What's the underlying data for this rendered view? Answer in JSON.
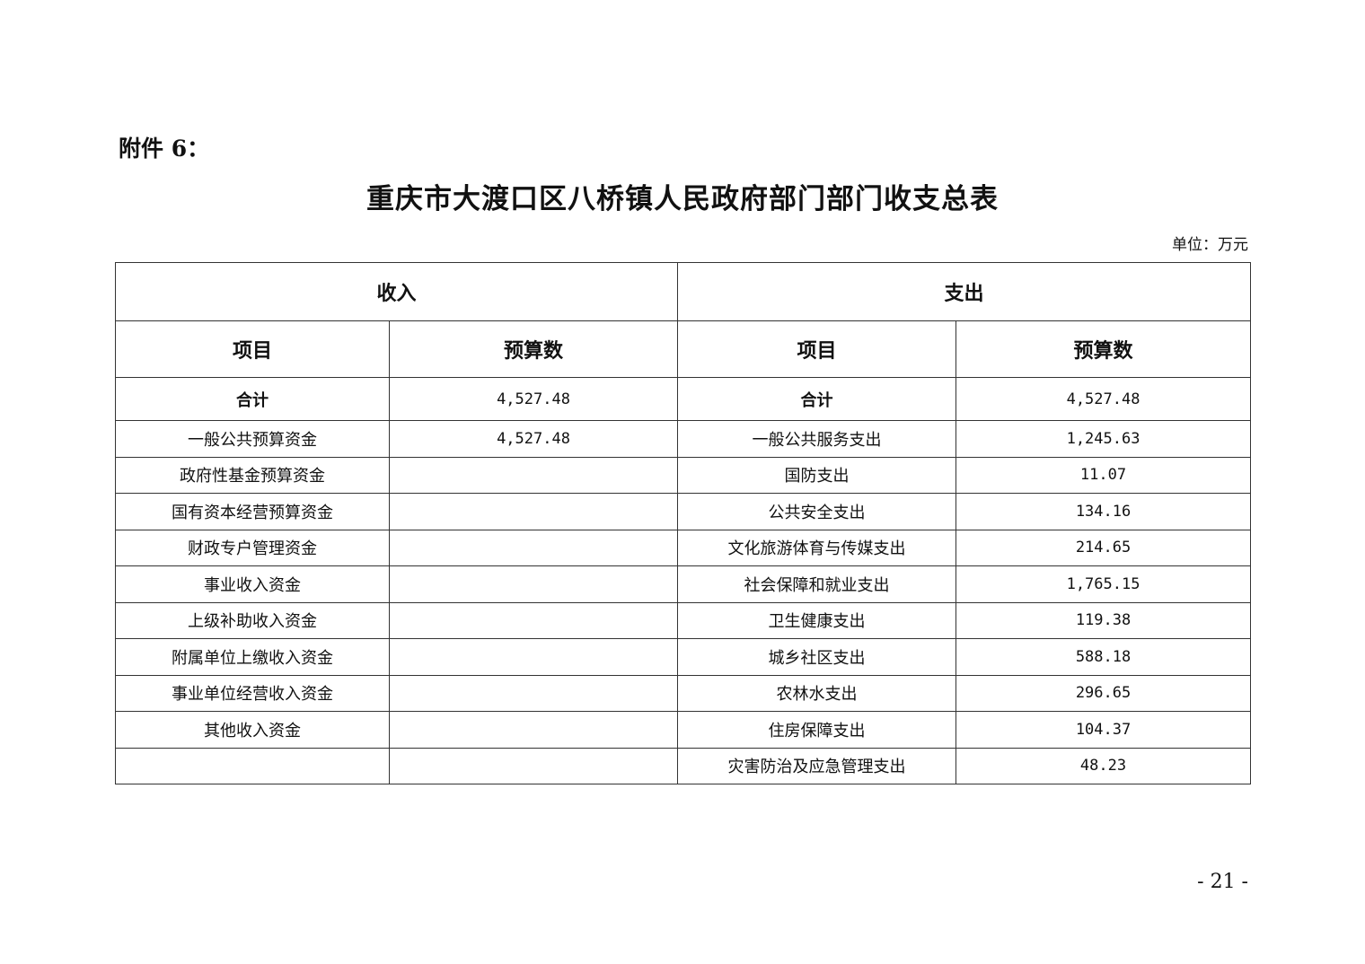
{
  "attachment_label": "附件 6：",
  "title": "重庆市大渡口区八桥镇人民政府部门部门收支总表",
  "unit": "单位：万元",
  "table": {
    "income_header": "收入",
    "expense_header": "支出",
    "col_item": "项目",
    "col_budget": "预算数",
    "total": {
      "income_label": "合计",
      "income_value": "4,527.48",
      "expense_label": "合计",
      "expense_value": "4,527.48"
    },
    "rows": [
      {
        "income_item": "一般公共预算资金",
        "income_value": "4,527.48",
        "expense_item": "一般公共服务支出",
        "expense_value": "1,245.63"
      },
      {
        "income_item": "政府性基金预算资金",
        "income_value": "",
        "expense_item": "国防支出",
        "expense_value": "11.07"
      },
      {
        "income_item": "国有资本经营预算资金",
        "income_value": "",
        "expense_item": "公共安全支出",
        "expense_value": "134.16"
      },
      {
        "income_item": "财政专户管理资金",
        "income_value": "",
        "expense_item": "文化旅游体育与传媒支出",
        "expense_value": "214.65"
      },
      {
        "income_item": "事业收入资金",
        "income_value": "",
        "expense_item": "社会保障和就业支出",
        "expense_value": "1,765.15"
      },
      {
        "income_item": "上级补助收入资金",
        "income_value": "",
        "expense_item": "卫生健康支出",
        "expense_value": "119.38"
      },
      {
        "income_item": "附属单位上缴收入资金",
        "income_value": "",
        "expense_item": "城乡社区支出",
        "expense_value": "588.18"
      },
      {
        "income_item": "事业单位经营收入资金",
        "income_value": "",
        "expense_item": "农林水支出",
        "expense_value": "296.65"
      },
      {
        "income_item": "其他收入资金",
        "income_value": "",
        "expense_item": "住房保障支出",
        "expense_value": "104.37"
      },
      {
        "income_item": "",
        "income_value": "",
        "expense_item": "灾害防治及应急管理支出",
        "expense_value": "48.23"
      }
    ]
  },
  "page_number": "- 21 -"
}
